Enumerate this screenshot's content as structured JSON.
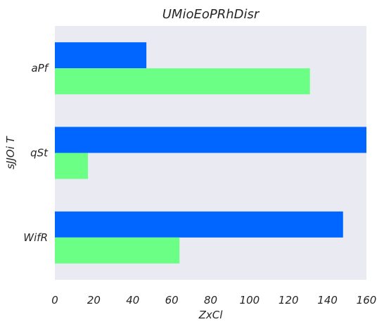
{
  "chart_data": {
    "type": "bar",
    "orientation": "horizontal",
    "title": "UMioEoPRhDisr",
    "xlabel": "ZxCl",
    "ylabel": "sJJOi T",
    "categories": [
      "aPf",
      "qSt",
      "WifR"
    ],
    "series": [
      {
        "values": [
          47,
          160,
          148
        ],
        "color": "#0066ff"
      },
      {
        "values": [
          131,
          17,
          64
        ],
        "color": "#6bff85"
      }
    ],
    "xlim": [
      0,
      160
    ],
    "xticks": [
      0,
      20,
      40,
      60,
      80,
      100,
      120,
      140,
      160
    ],
    "grid": false,
    "legend": "none",
    "plot_background": "#e9eaf2"
  }
}
